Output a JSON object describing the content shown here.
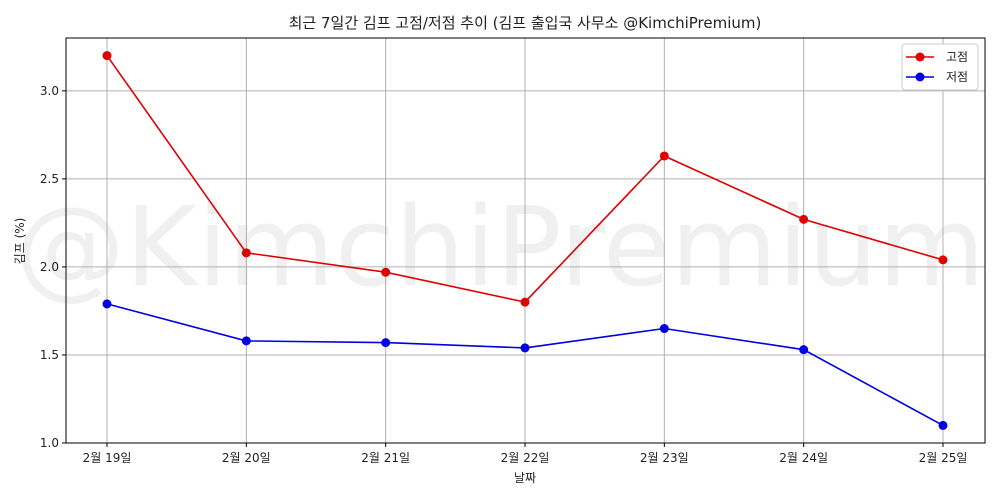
{
  "chart_data": {
    "type": "line",
    "title": "최근 7일간 김프 고점/저점 추이 (김프 출입국 사무소 @KimchiPremium)",
    "xlabel": "날짜",
    "ylabel": "김프 (%)",
    "categories": [
      "2월 19일",
      "2월 20일",
      "2월 21일",
      "2월 22일",
      "2월 23일",
      "2월 24일",
      "2월 25일"
    ],
    "series": [
      {
        "name": "고점",
        "color": "#e00000",
        "values": [
          3.2,
          2.08,
          1.97,
          1.8,
          2.63,
          2.27,
          2.04
        ]
      },
      {
        "name": "저점",
        "color": "#0000e0",
        "values": [
          1.79,
          1.58,
          1.57,
          1.54,
          1.65,
          1.53,
          1.1
        ]
      }
    ],
    "ylim": [
      1.0,
      3.3
    ],
    "yticks": [
      "1.0",
      "1.5",
      "2.0",
      "2.5",
      "3.0"
    ],
    "grid": true,
    "legend": "top-right",
    "watermark": "@KimchiPremium"
  }
}
